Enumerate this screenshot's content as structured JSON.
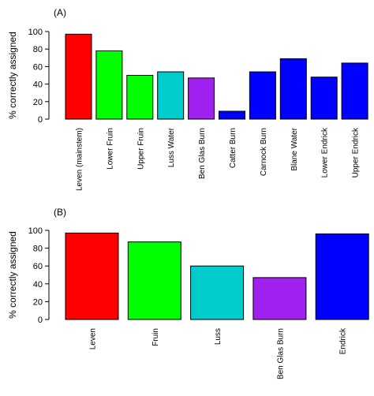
{
  "chart_data": [
    {
      "type": "bar",
      "title": "(A)",
      "ylabel": "% correctly assigned",
      "xlabel": "",
      "ylim": [
        0,
        100
      ],
      "yticks": [
        0,
        20,
        40,
        60,
        80,
        100
      ],
      "grid": false,
      "legend": "none",
      "categories": [
        "Leven (mainstem)",
        "Lower Fruin",
        "Upper Fruin",
        "Luss Water",
        "Ben Glas Burn",
        "Catter Burn",
        "Carnock Burn",
        "Blane Water",
        "Lower Endrick",
        "Upper Endrick"
      ],
      "values": [
        97,
        78,
        50,
        54,
        47,
        9,
        54,
        69,
        48,
        64
      ],
      "colors": [
        "#ff0000",
        "#00ff00",
        "#00ff00",
        "#00cccc",
        "#a020f0",
        "#0000ff",
        "#0000ff",
        "#0000ff",
        "#0000ff",
        "#0000ff"
      ]
    },
    {
      "type": "bar",
      "title": "(B)",
      "ylabel": "% correctly assigned",
      "xlabel": "",
      "ylim": [
        0,
        100
      ],
      "yticks": [
        0,
        20,
        40,
        60,
        80,
        100
      ],
      "grid": false,
      "legend": "none",
      "categories": [
        "Leven",
        "Fruin",
        "Luss",
        "Ben Glas Burn",
        "Endrick"
      ],
      "values": [
        97,
        87,
        60,
        47,
        96
      ],
      "colors": [
        "#ff0000",
        "#00ff00",
        "#00cccc",
        "#a020f0",
        "#0000ff"
      ]
    }
  ]
}
